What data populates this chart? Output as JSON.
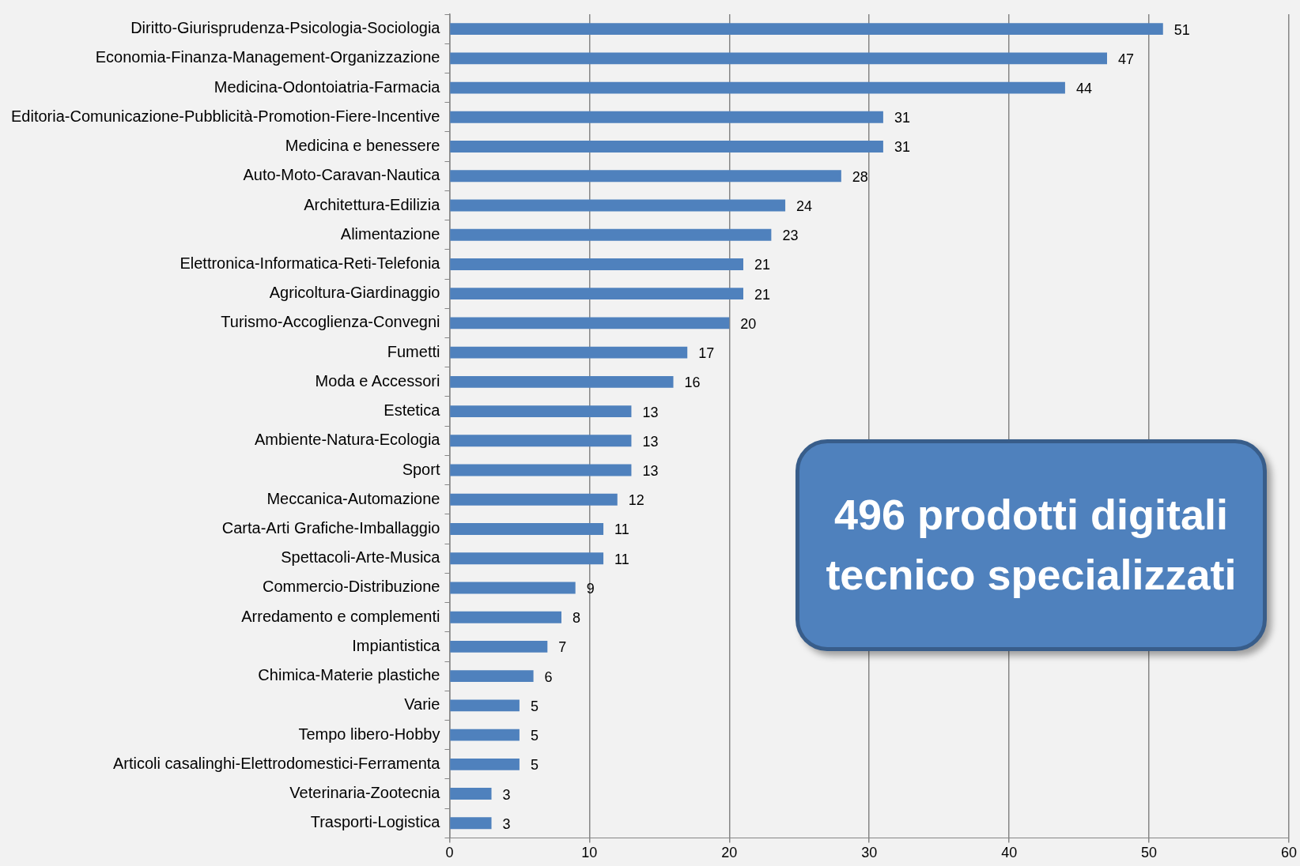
{
  "chart_data": {
    "type": "bar",
    "orientation": "horizontal",
    "categories": [
      "Diritto-Giurisprudenza-Psicologia-Sociologia",
      "Economia-Finanza-Management-Organizzazione",
      "Medicina-Odontoiatria-Farmacia",
      "Editoria-Comunicazione-Pubblicità-Promotion-Fiere-Incentive",
      "Medicina e benessere",
      "Auto-Moto-Caravan-Nautica",
      "Architettura-Edilizia",
      "Alimentazione",
      "Elettronica-Informatica-Reti-Telefonia",
      "Agricoltura-Giardinaggio",
      "Turismo-Accoglienza-Convegni",
      "Fumetti",
      "Moda e Accessori",
      "Estetica",
      "Ambiente-Natura-Ecologia",
      "Sport",
      "Meccanica-Automazione",
      "Carta-Arti Grafiche-Imballaggio",
      "Spettacoli-Arte-Musica",
      "Commercio-Distribuzione",
      "Arredamento e complementi",
      "Impiantistica",
      "Chimica-Materie plastiche",
      "Varie",
      "Tempo libero-Hobby",
      "Articoli casalinghi-Elettrodomestici-Ferramenta",
      "Veterinaria-Zootecnia",
      "Trasporti-Logistica"
    ],
    "values": [
      51,
      47,
      44,
      31,
      31,
      28,
      24,
      23,
      21,
      21,
      20,
      17,
      16,
      13,
      13,
      13,
      12,
      11,
      11,
      9,
      8,
      7,
      6,
      5,
      5,
      5,
      3,
      3
    ],
    "value_labels": [
      "51",
      "47",
      "44",
      "31",
      "31",
      "28",
      "24",
      "23",
      "21",
      "21",
      "20",
      "17",
      "16",
      "13",
      "13",
      "13",
      "12",
      "11",
      "11",
      "9",
      "8",
      "7",
      "6",
      "5",
      "5",
      "5",
      "3",
      "3"
    ],
    "color": "#4f81bd",
    "xlim": [
      0,
      60
    ],
    "xticks": [
      0,
      10,
      20,
      30,
      40,
      50,
      60
    ],
    "grid": "x",
    "legend": false,
    "annotations": [
      "496 prodotti digitali tecnico specializzati"
    ]
  }
}
